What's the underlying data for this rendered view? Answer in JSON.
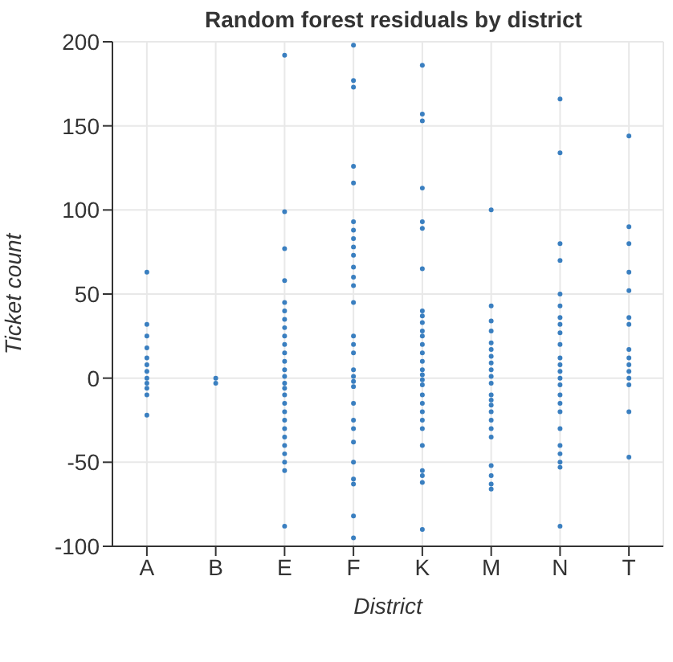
{
  "chart_data": {
    "type": "scatter",
    "title": "Random forest residuals by district",
    "xlabel": "District",
    "ylabel": "Ticket count",
    "categories": [
      "A",
      "B",
      "E",
      "F",
      "K",
      "M",
      "N",
      "T"
    ],
    "ylim": [
      -100,
      200
    ],
    "yticks": [
      -100,
      -50,
      0,
      50,
      100,
      150,
      200
    ],
    "grid": true,
    "marker": "circle",
    "series": [
      {
        "color": "#3a7fc0",
        "x": [
          "A",
          "A",
          "A",
          "A",
          "A",
          "A",
          "A",
          "A",
          "A",
          "A",
          "A",
          "A",
          "B",
          "B",
          "E",
          "E",
          "E",
          "E",
          "E",
          "E",
          "E",
          "E",
          "E",
          "E",
          "E",
          "E",
          "E",
          "E",
          "E",
          "E",
          "E",
          "E",
          "E",
          "E",
          "E",
          "E",
          "E",
          "E",
          "E",
          "E",
          "E",
          "F",
          "F",
          "F",
          "F",
          "F",
          "F",
          "F",
          "F",
          "F",
          "F",
          "F",
          "F",
          "F",
          "F",
          "F",
          "F",
          "F",
          "F",
          "F",
          "F",
          "F",
          "F",
          "F",
          "F",
          "F",
          "F",
          "F",
          "F",
          "F",
          "F",
          "K",
          "K",
          "K",
          "K",
          "K",
          "K",
          "K",
          "K",
          "K",
          "K",
          "K",
          "K",
          "K",
          "K",
          "K",
          "K",
          "K",
          "K",
          "K",
          "K",
          "K",
          "K",
          "K",
          "K",
          "K",
          "K",
          "K",
          "K",
          "K",
          "M",
          "M",
          "M",
          "M",
          "M",
          "M",
          "M",
          "M",
          "M",
          "M",
          "M",
          "M",
          "M",
          "M",
          "M",
          "M",
          "M",
          "M",
          "M",
          "M",
          "M",
          "M",
          "N",
          "N",
          "N",
          "N",
          "N",
          "N",
          "N",
          "N",
          "N",
          "N",
          "N",
          "N",
          "N",
          "N",
          "N",
          "N",
          "N",
          "N",
          "N",
          "N",
          "N",
          "N",
          "N",
          "N",
          "T",
          "T",
          "T",
          "T",
          "T",
          "T",
          "T",
          "T",
          "T",
          "T",
          "T",
          "T",
          "T",
          "T",
          "T"
        ],
        "values": [
          63,
          32,
          25,
          18,
          12,
          8,
          4,
          0,
          -3,
          -6,
          -10,
          -22,
          0,
          -3,
          192,
          99,
          77,
          58,
          45,
          40,
          35,
          30,
          25,
          20,
          15,
          10,
          5,
          1,
          -3,
          -6,
          -10,
          -15,
          -20,
          -25,
          -30,
          -35,
          -40,
          -45,
          -50,
          -55,
          -88,
          198,
          177,
          173,
          126,
          116,
          93,
          88,
          83,
          78,
          73,
          66,
          60,
          55,
          45,
          25,
          20,
          15,
          5,
          1,
          -2,
          -5,
          -15,
          -25,
          -30,
          -38,
          -50,
          -60,
          -63,
          -82,
          -95,
          186,
          157,
          153,
          113,
          93,
          89,
          65,
          40,
          37,
          33,
          28,
          25,
          20,
          15,
          10,
          5,
          2,
          -1,
          -4,
          -10,
          -15,
          -20,
          -25,
          -30,
          -40,
          -55,
          -58,
          -62,
          -90,
          100,
          43,
          34,
          28,
          21,
          17,
          13,
          9,
          5,
          1,
          -3,
          -10,
          -13,
          -16,
          -20,
          -25,
          -30,
          -35,
          -52,
          -58,
          -63,
          -66,
          166,
          134,
          80,
          70,
          50,
          43,
          36,
          32,
          27,
          20,
          12,
          8,
          4,
          0,
          -4,
          -10,
          -15,
          -20,
          -30,
          -40,
          -45,
          -50,
          -53,
          -88,
          144,
          90,
          80,
          63,
          52,
          36,
          32,
          17,
          12,
          8,
          4,
          0,
          -4,
          -20,
          -47
        ]
      }
    ]
  }
}
